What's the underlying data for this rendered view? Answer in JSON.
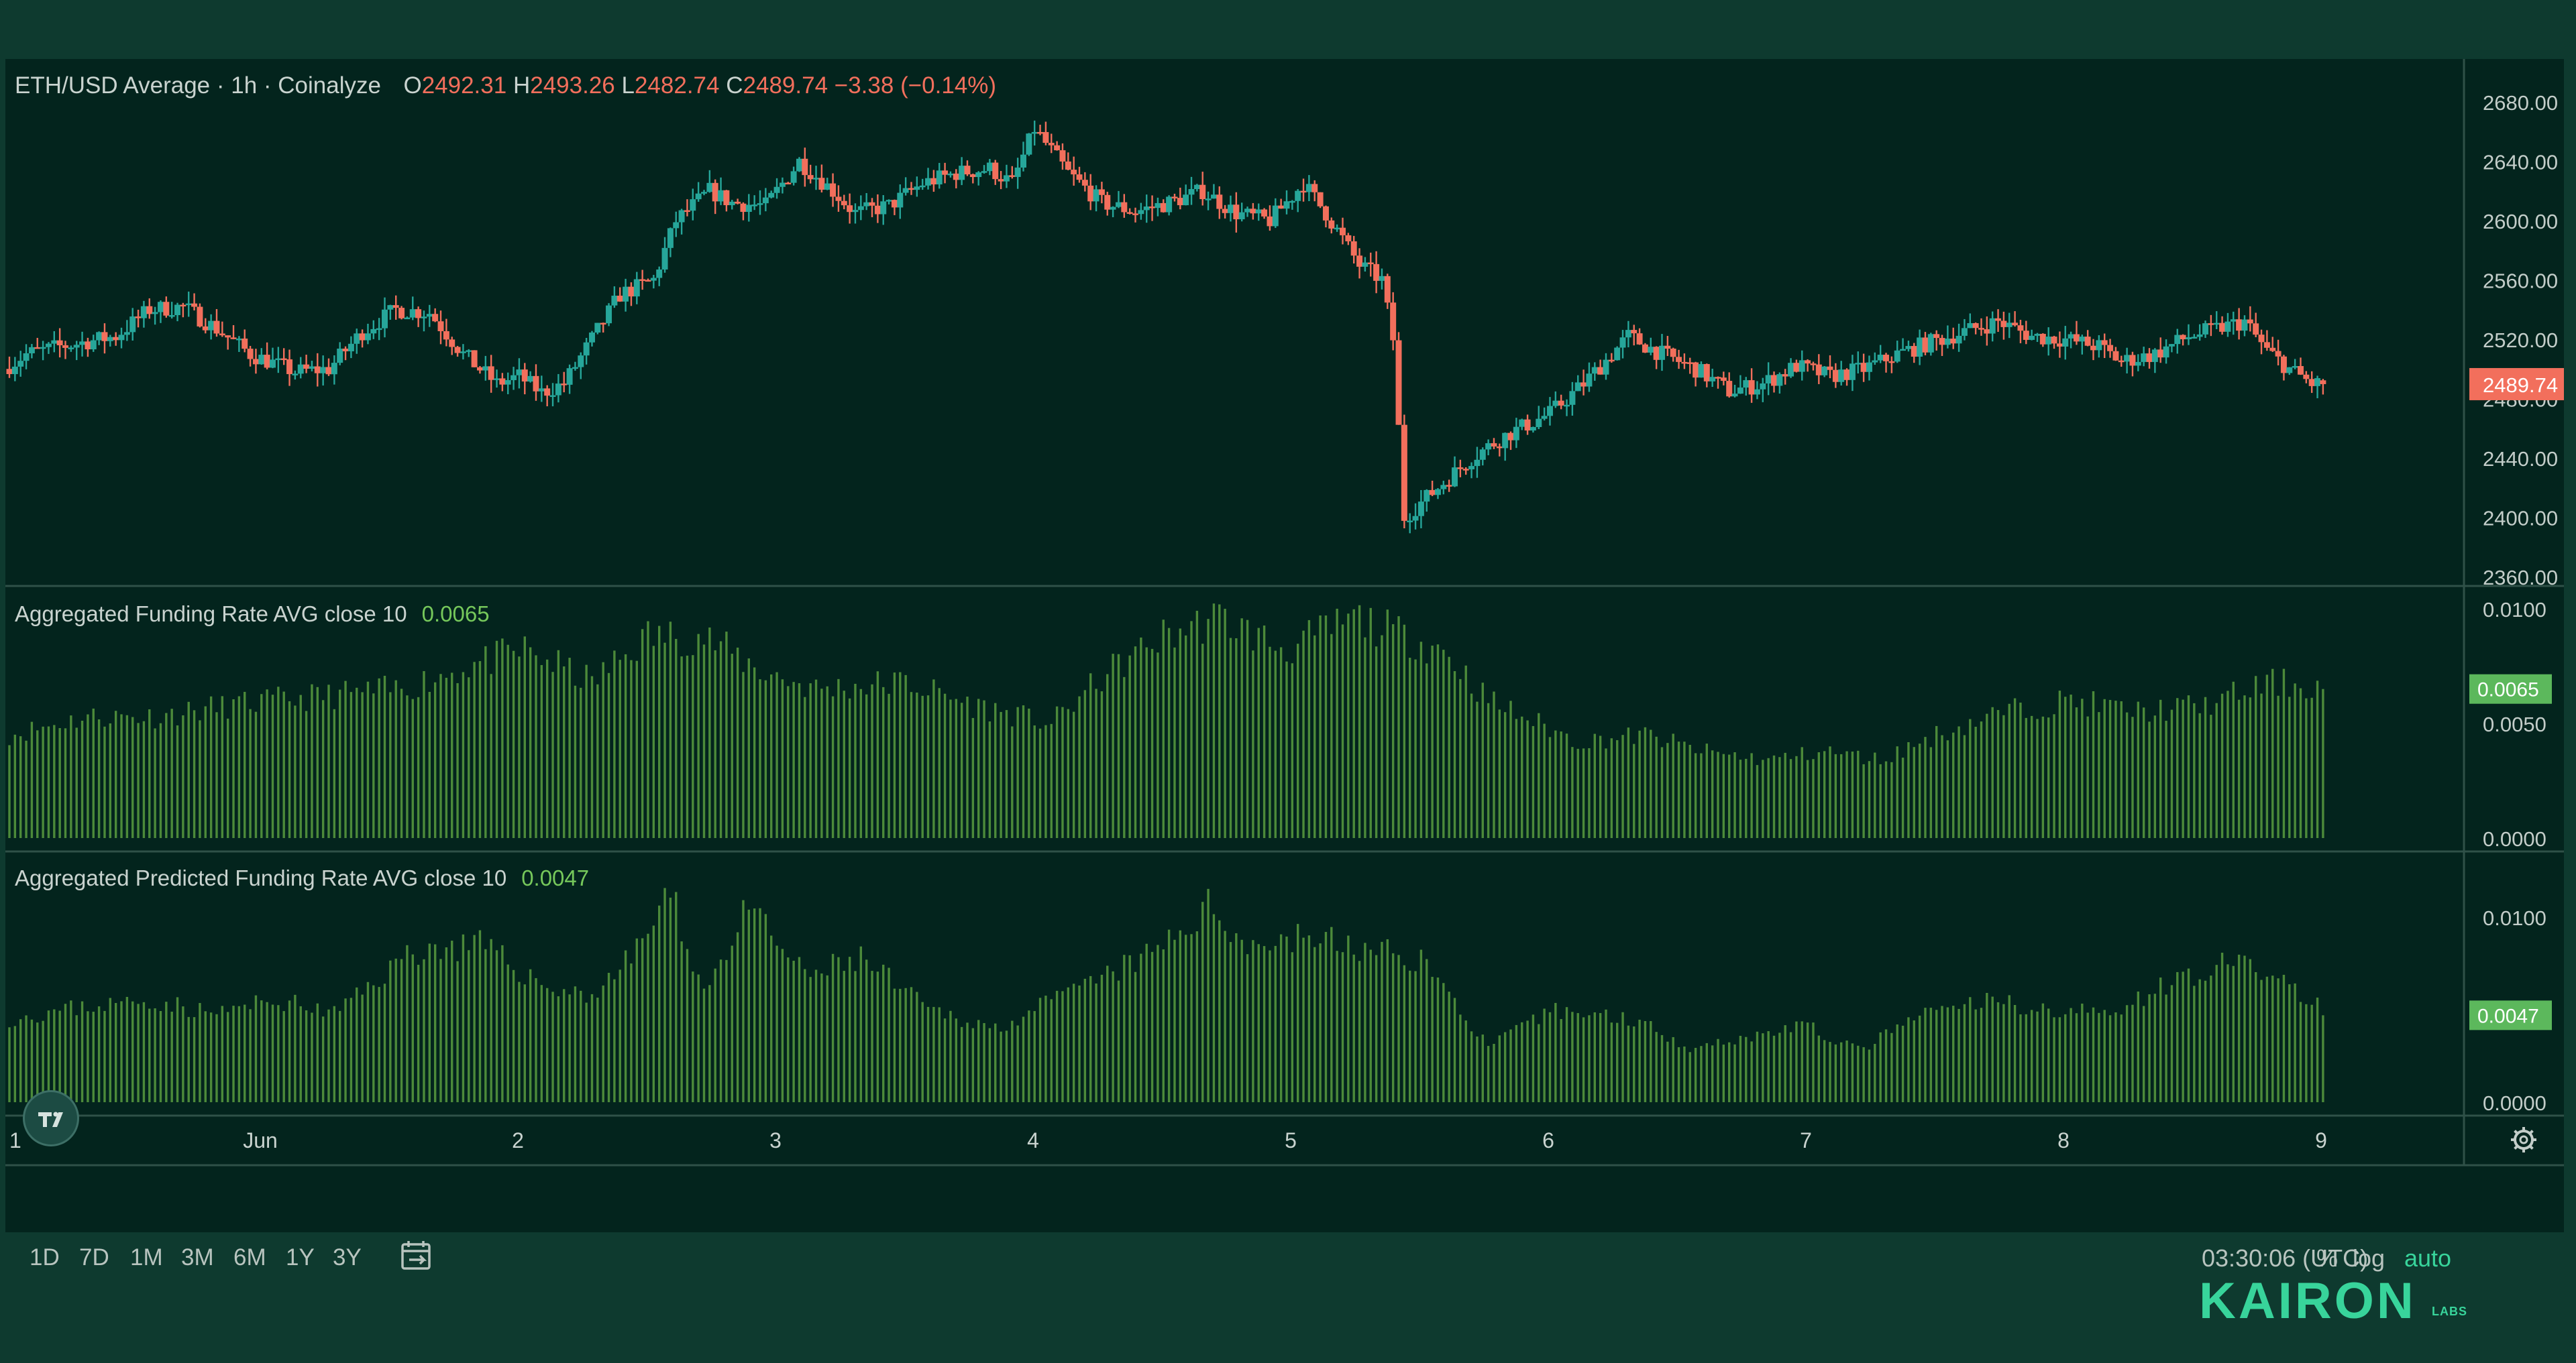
{
  "header": {
    "title": "ETH/USD Average · 1h · Coinalyze",
    "ohlc": [
      {
        "label": "O",
        "value": "2492.31"
      },
      {
        "label": "H",
        "value": "2493.26"
      },
      {
        "label": "L",
        "value": "2482.74"
      },
      {
        "label": "C",
        "value": "2489.74"
      }
    ],
    "change": "−3.38 (−0.14%)"
  },
  "panels": {
    "price": {
      "last_price_label": "2489.74",
      "last_price_color": "#f26f5c"
    },
    "funding": {
      "title": "Aggregated Funding Rate AVG close 10",
      "value": "0.0065"
    },
    "predicted": {
      "title": "Aggregated Predicted Funding Rate AVG close 10",
      "value": "0.0047"
    }
  },
  "timeframes": [
    "1D",
    "7D",
    "1M",
    "3M",
    "6M",
    "1Y",
    "3Y"
  ],
  "icons": {
    "date_range": "calendar-icon",
    "settings": "gear-icon",
    "logo": "tradingview-logo"
  },
  "time_display": "03:30:06 (UTC)",
  "scale_controls": {
    "percent": "%",
    "log": "log",
    "auto": "auto"
  },
  "brand": {
    "name": "KAIRON",
    "sub": "LABS"
  },
  "colors": {
    "background": "#03241d",
    "outer": "#0e3a2f",
    "up": "#26a69a",
    "down": "#f26f5c",
    "funding_bar": "#4c8a3a",
    "grid_separator": "#2f5148"
  },
  "chart_data": [
    {
      "type": "candlestick",
      "title": "ETH/USD Average · 1h · Coinalyze",
      "y_ticks": [
        "2680.00",
        "2640.00",
        "2600.00",
        "2560.00",
        "2520.00",
        "2480.00",
        "2440.00",
        "2400.00",
        "2360.00"
      ],
      "ylim": [
        2360,
        2680
      ],
      "x_ticks": [
        "1",
        "Jun",
        "2",
        "3",
        "4",
        "5",
        "6",
        "7",
        "8",
        "9"
      ],
      "path_keypoints": [
        [
          0,
          2500
        ],
        [
          4,
          2510
        ],
        [
          10,
          2515
        ],
        [
          20,
          2522
        ],
        [
          26,
          2540
        ],
        [
          32,
          2542
        ],
        [
          38,
          2527
        ],
        [
          44,
          2510
        ],
        [
          52,
          2498
        ],
        [
          58,
          2500
        ],
        [
          64,
          2525
        ],
        [
          70,
          2540
        ],
        [
          76,
          2538
        ],
        [
          82,
          2510
        ],
        [
          88,
          2490
        ],
        [
          92,
          2495
        ],
        [
          96,
          2484
        ],
        [
          100,
          2490
        ],
        [
          105,
          2520
        ],
        [
          110,
          2550
        ],
        [
          116,
          2560
        ],
        [
          120,
          2600
        ],
        [
          126,
          2620
        ],
        [
          130,
          2612
        ],
        [
          136,
          2610
        ],
        [
          142,
          2640
        ],
        [
          148,
          2620
        ],
        [
          152,
          2605
        ],
        [
          158,
          2610
        ],
        [
          164,
          2625
        ],
        [
          170,
          2632
        ],
        [
          176,
          2635
        ],
        [
          180,
          2625
        ],
        [
          184,
          2662
        ],
        [
          190,
          2632
        ],
        [
          196,
          2612
        ],
        [
          202,
          2606
        ],
        [
          208,
          2612
        ],
        [
          214,
          2620
        ],
        [
          220,
          2605
        ],
        [
          226,
          2600
        ],
        [
          232,
          2625
        ],
        [
          236,
          2605
        ],
        [
          242,
          2570
        ],
        [
          246,
          2560
        ],
        [
          248,
          2520
        ],
        [
          250,
          2400
        ],
        [
          256,
          2420
        ],
        [
          262,
          2440
        ],
        [
          268,
          2455
        ],
        [
          276,
          2470
        ],
        [
          282,
          2490
        ],
        [
          290,
          2522
        ],
        [
          296,
          2510
        ],
        [
          302,
          2500
        ],
        [
          308,
          2485
        ],
        [
          314,
          2490
        ],
        [
          320,
          2502
        ],
        [
          326,
          2495
        ],
        [
          332,
          2500
        ],
        [
          338,
          2510
        ],
        [
          344,
          2518
        ],
        [
          350,
          2525
        ],
        [
          356,
          2532
        ],
        [
          362,
          2522
        ],
        [
          368,
          2520
        ],
        [
          374,
          2515
        ],
        [
          378,
          2505
        ],
        [
          384,
          2510
        ],
        [
          390,
          2522
        ],
        [
          396,
          2528
        ],
        [
          400,
          2532
        ],
        [
          404,
          2512
        ],
        [
          408,
          2500
        ],
        [
          412,
          2490
        ]
      ],
      "last": {
        "open": 2492.31,
        "high": 2493.26,
        "low": 2482.74,
        "close": 2489.74
      }
    },
    {
      "type": "bar",
      "title": "Aggregated Funding Rate AVG close 10",
      "y_ticks": [
        "0.0100",
        "0.0050",
        "0.0000"
      ],
      "ylim": [
        0,
        0.01
      ],
      "keypoints": [
        [
          0,
          0.0045
        ],
        [
          14,
          0.0053
        ],
        [
          26,
          0.0053
        ],
        [
          40,
          0.0058
        ],
        [
          56,
          0.0062
        ],
        [
          70,
          0.0065
        ],
        [
          82,
          0.0075
        ],
        [
          92,
          0.0082
        ],
        [
          104,
          0.0068
        ],
        [
          114,
          0.0088
        ],
        [
          124,
          0.0088
        ],
        [
          134,
          0.0073
        ],
        [
          144,
          0.0065
        ],
        [
          160,
          0.0068
        ],
        [
          172,
          0.0058
        ],
        [
          186,
          0.005
        ],
        [
          196,
          0.0072
        ],
        [
          206,
          0.0088
        ],
        [
          216,
          0.0096
        ],
        [
          228,
          0.0082
        ],
        [
          240,
          0.0096
        ],
        [
          256,
          0.0082
        ],
        [
          264,
          0.006
        ],
        [
          280,
          0.0042
        ],
        [
          292,
          0.0045
        ],
        [
          302,
          0.0038
        ],
        [
          314,
          0.0034
        ],
        [
          324,
          0.0038
        ],
        [
          334,
          0.0034
        ],
        [
          344,
          0.0045
        ],
        [
          356,
          0.0055
        ],
        [
          368,
          0.006
        ],
        [
          380,
          0.0055
        ],
        [
          392,
          0.0058
        ],
        [
          404,
          0.0068
        ],
        [
          414,
          0.0065
        ]
      ],
      "last_value": 0.0065
    },
    {
      "type": "bar",
      "title": "Aggregated Predicted Funding Rate AVG close 10",
      "y_ticks": [
        "0.0100",
        "0.0000"
      ],
      "ylim": [
        0,
        0.012
      ],
      "keypoints": [
        [
          0,
          0.0045
        ],
        [
          14,
          0.0052
        ],
        [
          26,
          0.0055
        ],
        [
          36,
          0.0048
        ],
        [
          48,
          0.0055
        ],
        [
          58,
          0.0048
        ],
        [
          72,
          0.0082
        ],
        [
          84,
          0.0085
        ],
        [
          96,
          0.0062
        ],
        [
          104,
          0.0058
        ],
        [
          110,
          0.0075
        ],
        [
          118,
          0.0112
        ],
        [
          124,
          0.006
        ],
        [
          132,
          0.0105
        ],
        [
          142,
          0.0068
        ],
        [
          152,
          0.0078
        ],
        [
          164,
          0.005
        ],
        [
          176,
          0.004
        ],
        [
          190,
          0.006
        ],
        [
          204,
          0.008
        ],
        [
          214,
          0.0105
        ],
        [
          222,
          0.0085
        ],
        [
          232,
          0.009
        ],
        [
          242,
          0.0082
        ],
        [
          252,
          0.0078
        ],
        [
          264,
          0.003
        ],
        [
          276,
          0.005
        ],
        [
          290,
          0.0045
        ],
        [
          300,
          0.003
        ],
        [
          310,
          0.0035
        ],
        [
          320,
          0.0042
        ],
        [
          330,
          0.0028
        ],
        [
          342,
          0.0048
        ],
        [
          354,
          0.0055
        ],
        [
          364,
          0.005
        ],
        [
          374,
          0.0048
        ],
        [
          384,
          0.0062
        ],
        [
          394,
          0.0075
        ],
        [
          404,
          0.007
        ],
        [
          414,
          0.0047
        ]
      ],
      "last_value": 0.0047
    }
  ]
}
